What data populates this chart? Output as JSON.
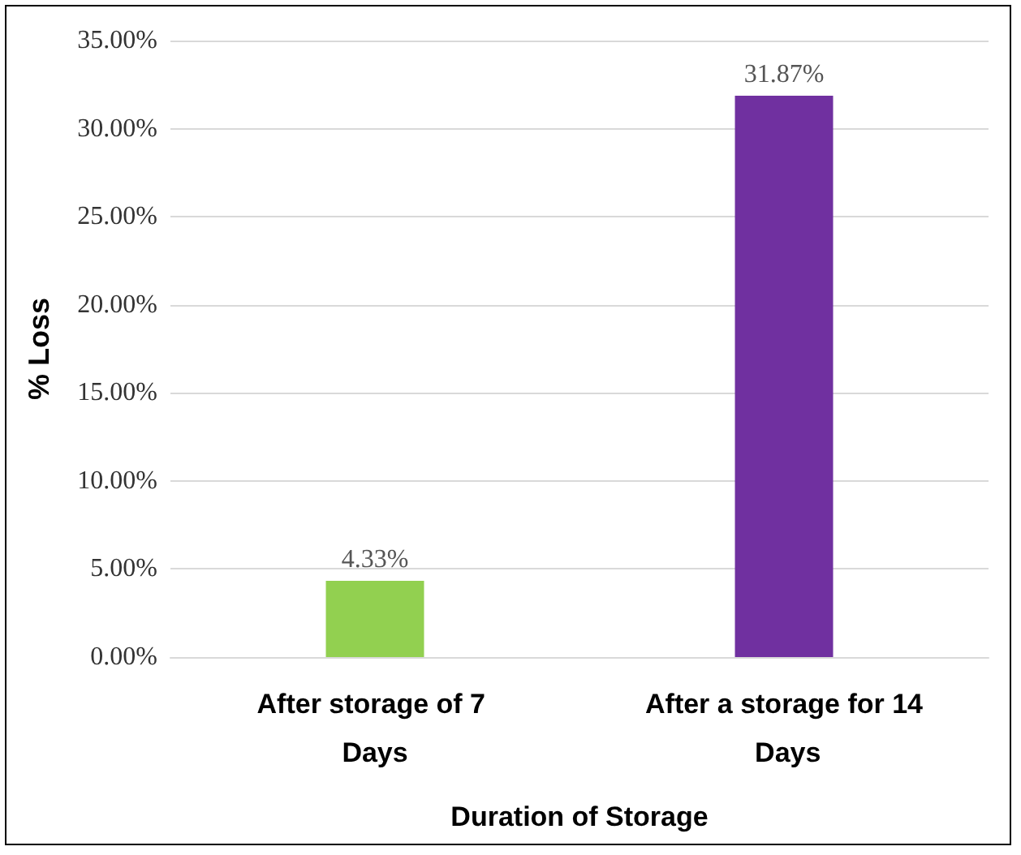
{
  "chart_data": {
    "type": "bar",
    "xlabel": "Duration of Storage",
    "ylabel": "% Loss",
    "categories": [
      "After storage of 7 Days",
      "After a storage for 14 Days"
    ],
    "values": [
      4.33,
      31.87
    ],
    "colors": [
      "#92d050",
      "#7030a0"
    ],
    "value_labels": [
      "4.33%",
      "31.87%"
    ],
    "ylim": [
      0,
      35
    ],
    "yticks": [
      {
        "value": 0,
        "label": "0.00%"
      },
      {
        "value": 5,
        "label": "5.00%"
      },
      {
        "value": 10,
        "label": "10.00%"
      },
      {
        "value": 15,
        "label": "15.00%"
      },
      {
        "value": 20,
        "label": "20.00%"
      },
      {
        "value": 25,
        "label": "25.00%"
      },
      {
        "value": 30,
        "label": "30.00%"
      },
      {
        "value": 35,
        "label": "35.00%"
      }
    ],
    "grid": "y"
  }
}
